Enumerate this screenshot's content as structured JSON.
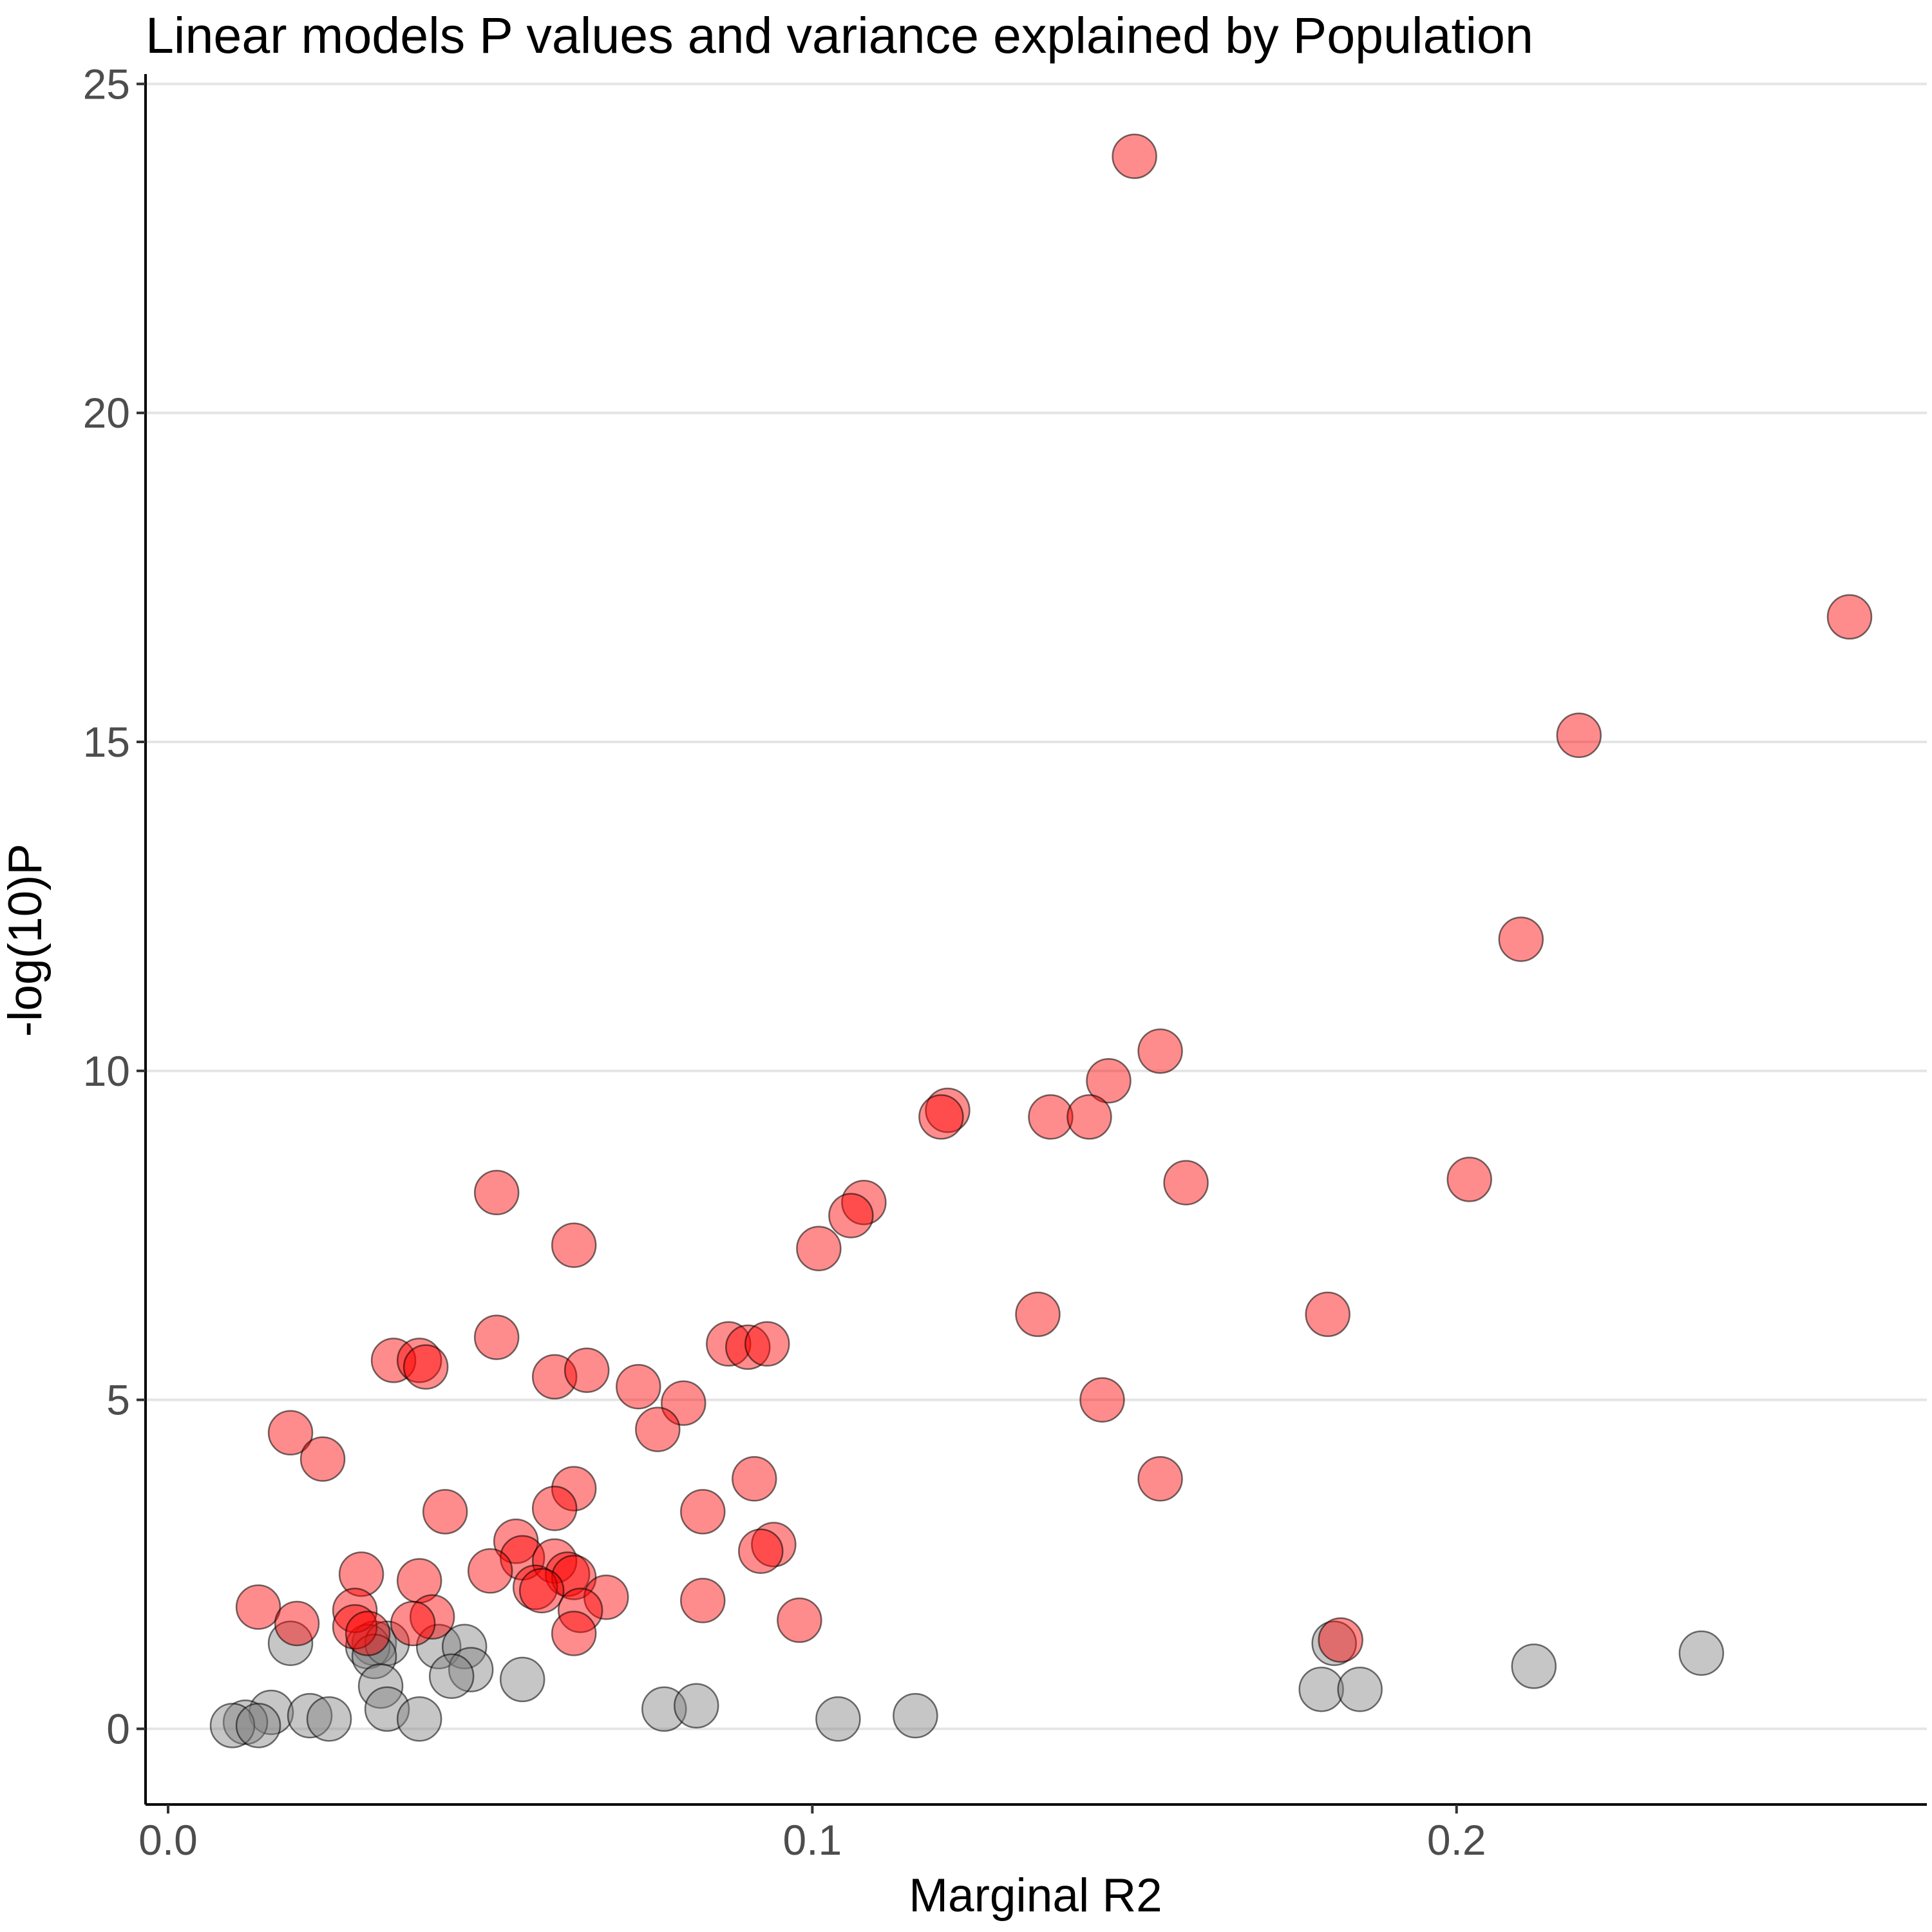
{
  "chart_data": {
    "type": "scatter",
    "title": "Linear models P values and variance explained by Population",
    "xlabel": "Marginal R2",
    "ylabel": "-log(10)P",
    "xlim": [
      -0.0035,
      0.273
    ],
    "ylim": [
      -1.15,
      25.15
    ],
    "xticks": [
      0.0,
      0.1,
      0.2
    ],
    "xtick_labels": [
      "0.0",
      "0.1",
      "0.2"
    ],
    "yticks": [
      0,
      5,
      10,
      15,
      20,
      25
    ],
    "ytick_labels": [
      "0",
      "5",
      "10",
      "15",
      "20",
      "25"
    ],
    "grid": "horizontal major",
    "legend": "none",
    "colors": {
      "significant": "#ff0000",
      "not_significant": "#808080"
    },
    "series": [
      {
        "color": "#ff0000",
        "points": [
          [
            0.15,
            23.9
          ],
          [
            0.261,
            16.9
          ],
          [
            0.219,
            15.1
          ],
          [
            0.21,
            12.0
          ],
          [
            0.154,
            10.3
          ],
          [
            0.146,
            9.85
          ],
          [
            0.121,
            9.4
          ],
          [
            0.12,
            9.3
          ],
          [
            0.137,
            9.3
          ],
          [
            0.143,
            9.3
          ],
          [
            0.158,
            8.3
          ],
          [
            0.202,
            8.35
          ],
          [
            0.108,
            8.0
          ],
          [
            0.106,
            7.8
          ],
          [
            0.101,
            7.3
          ],
          [
            0.051,
            8.15
          ],
          [
            0.063,
            7.35
          ],
          [
            0.135,
            6.3
          ],
          [
            0.18,
            6.3
          ],
          [
            0.051,
            5.95
          ],
          [
            0.087,
            5.85
          ],
          [
            0.09,
            5.8
          ],
          [
            0.093,
            5.85
          ],
          [
            0.035,
            5.6
          ],
          [
            0.039,
            5.6
          ],
          [
            0.04,
            5.5
          ],
          [
            0.06,
            5.35
          ],
          [
            0.065,
            5.45
          ],
          [
            0.073,
            5.2
          ],
          [
            0.08,
            4.95
          ],
          [
            0.076,
            4.55
          ],
          [
            0.145,
            5.0
          ],
          [
            0.019,
            4.5
          ],
          [
            0.024,
            4.1
          ],
          [
            0.091,
            3.8
          ],
          [
            0.154,
            3.8
          ],
          [
            0.063,
            3.65
          ],
          [
            0.06,
            3.35
          ],
          [
            0.043,
            3.3
          ],
          [
            0.083,
            3.3
          ],
          [
            0.054,
            2.85
          ],
          [
            0.094,
            2.8
          ],
          [
            0.092,
            2.7
          ],
          [
            0.055,
            2.6
          ],
          [
            0.06,
            2.55
          ],
          [
            0.062,
            2.35
          ],
          [
            0.063,
            2.3
          ],
          [
            0.05,
            2.4
          ],
          [
            0.03,
            2.35
          ],
          [
            0.039,
            2.25
          ],
          [
            0.057,
            2.15
          ],
          [
            0.058,
            2.1
          ],
          [
            0.068,
            2.0
          ],
          [
            0.083,
            1.95
          ],
          [
            0.014,
            1.85
          ],
          [
            0.029,
            1.8
          ],
          [
            0.064,
            1.8
          ],
          [
            0.02,
            1.6
          ],
          [
            0.098,
            1.65
          ],
          [
            0.041,
            1.7
          ],
          [
            0.038,
            1.6
          ],
          [
            0.029,
            1.55
          ],
          [
            0.031,
            1.45
          ],
          [
            0.063,
            1.45
          ],
          [
            0.182,
            1.35
          ]
        ]
      },
      {
        "color": "#808080",
        "points": [
          [
            0.019,
            1.3
          ],
          [
            0.032,
            1.3
          ],
          [
            0.031,
            1.25
          ],
          [
            0.034,
            1.3
          ],
          [
            0.042,
            1.25
          ],
          [
            0.046,
            1.25
          ],
          [
            0.181,
            1.3
          ],
          [
            0.032,
            1.1
          ],
          [
            0.238,
            1.15
          ],
          [
            0.212,
            0.95
          ],
          [
            0.047,
            0.9
          ],
          [
            0.044,
            0.8
          ],
          [
            0.055,
            0.75
          ],
          [
            0.033,
            0.65
          ],
          [
            0.179,
            0.6
          ],
          [
            0.185,
            0.6
          ],
          [
            0.034,
            0.3
          ],
          [
            0.077,
            0.3
          ],
          [
            0.082,
            0.35
          ],
          [
            0.016,
            0.25
          ],
          [
            0.022,
            0.2
          ],
          [
            0.025,
            0.15
          ],
          [
            0.039,
            0.15
          ],
          [
            0.104,
            0.15
          ],
          [
            0.116,
            0.2
          ],
          [
            0.012,
            0.1
          ],
          [
            0.01,
            0.05
          ],
          [
            0.014,
            0.05
          ]
        ]
      }
    ]
  }
}
